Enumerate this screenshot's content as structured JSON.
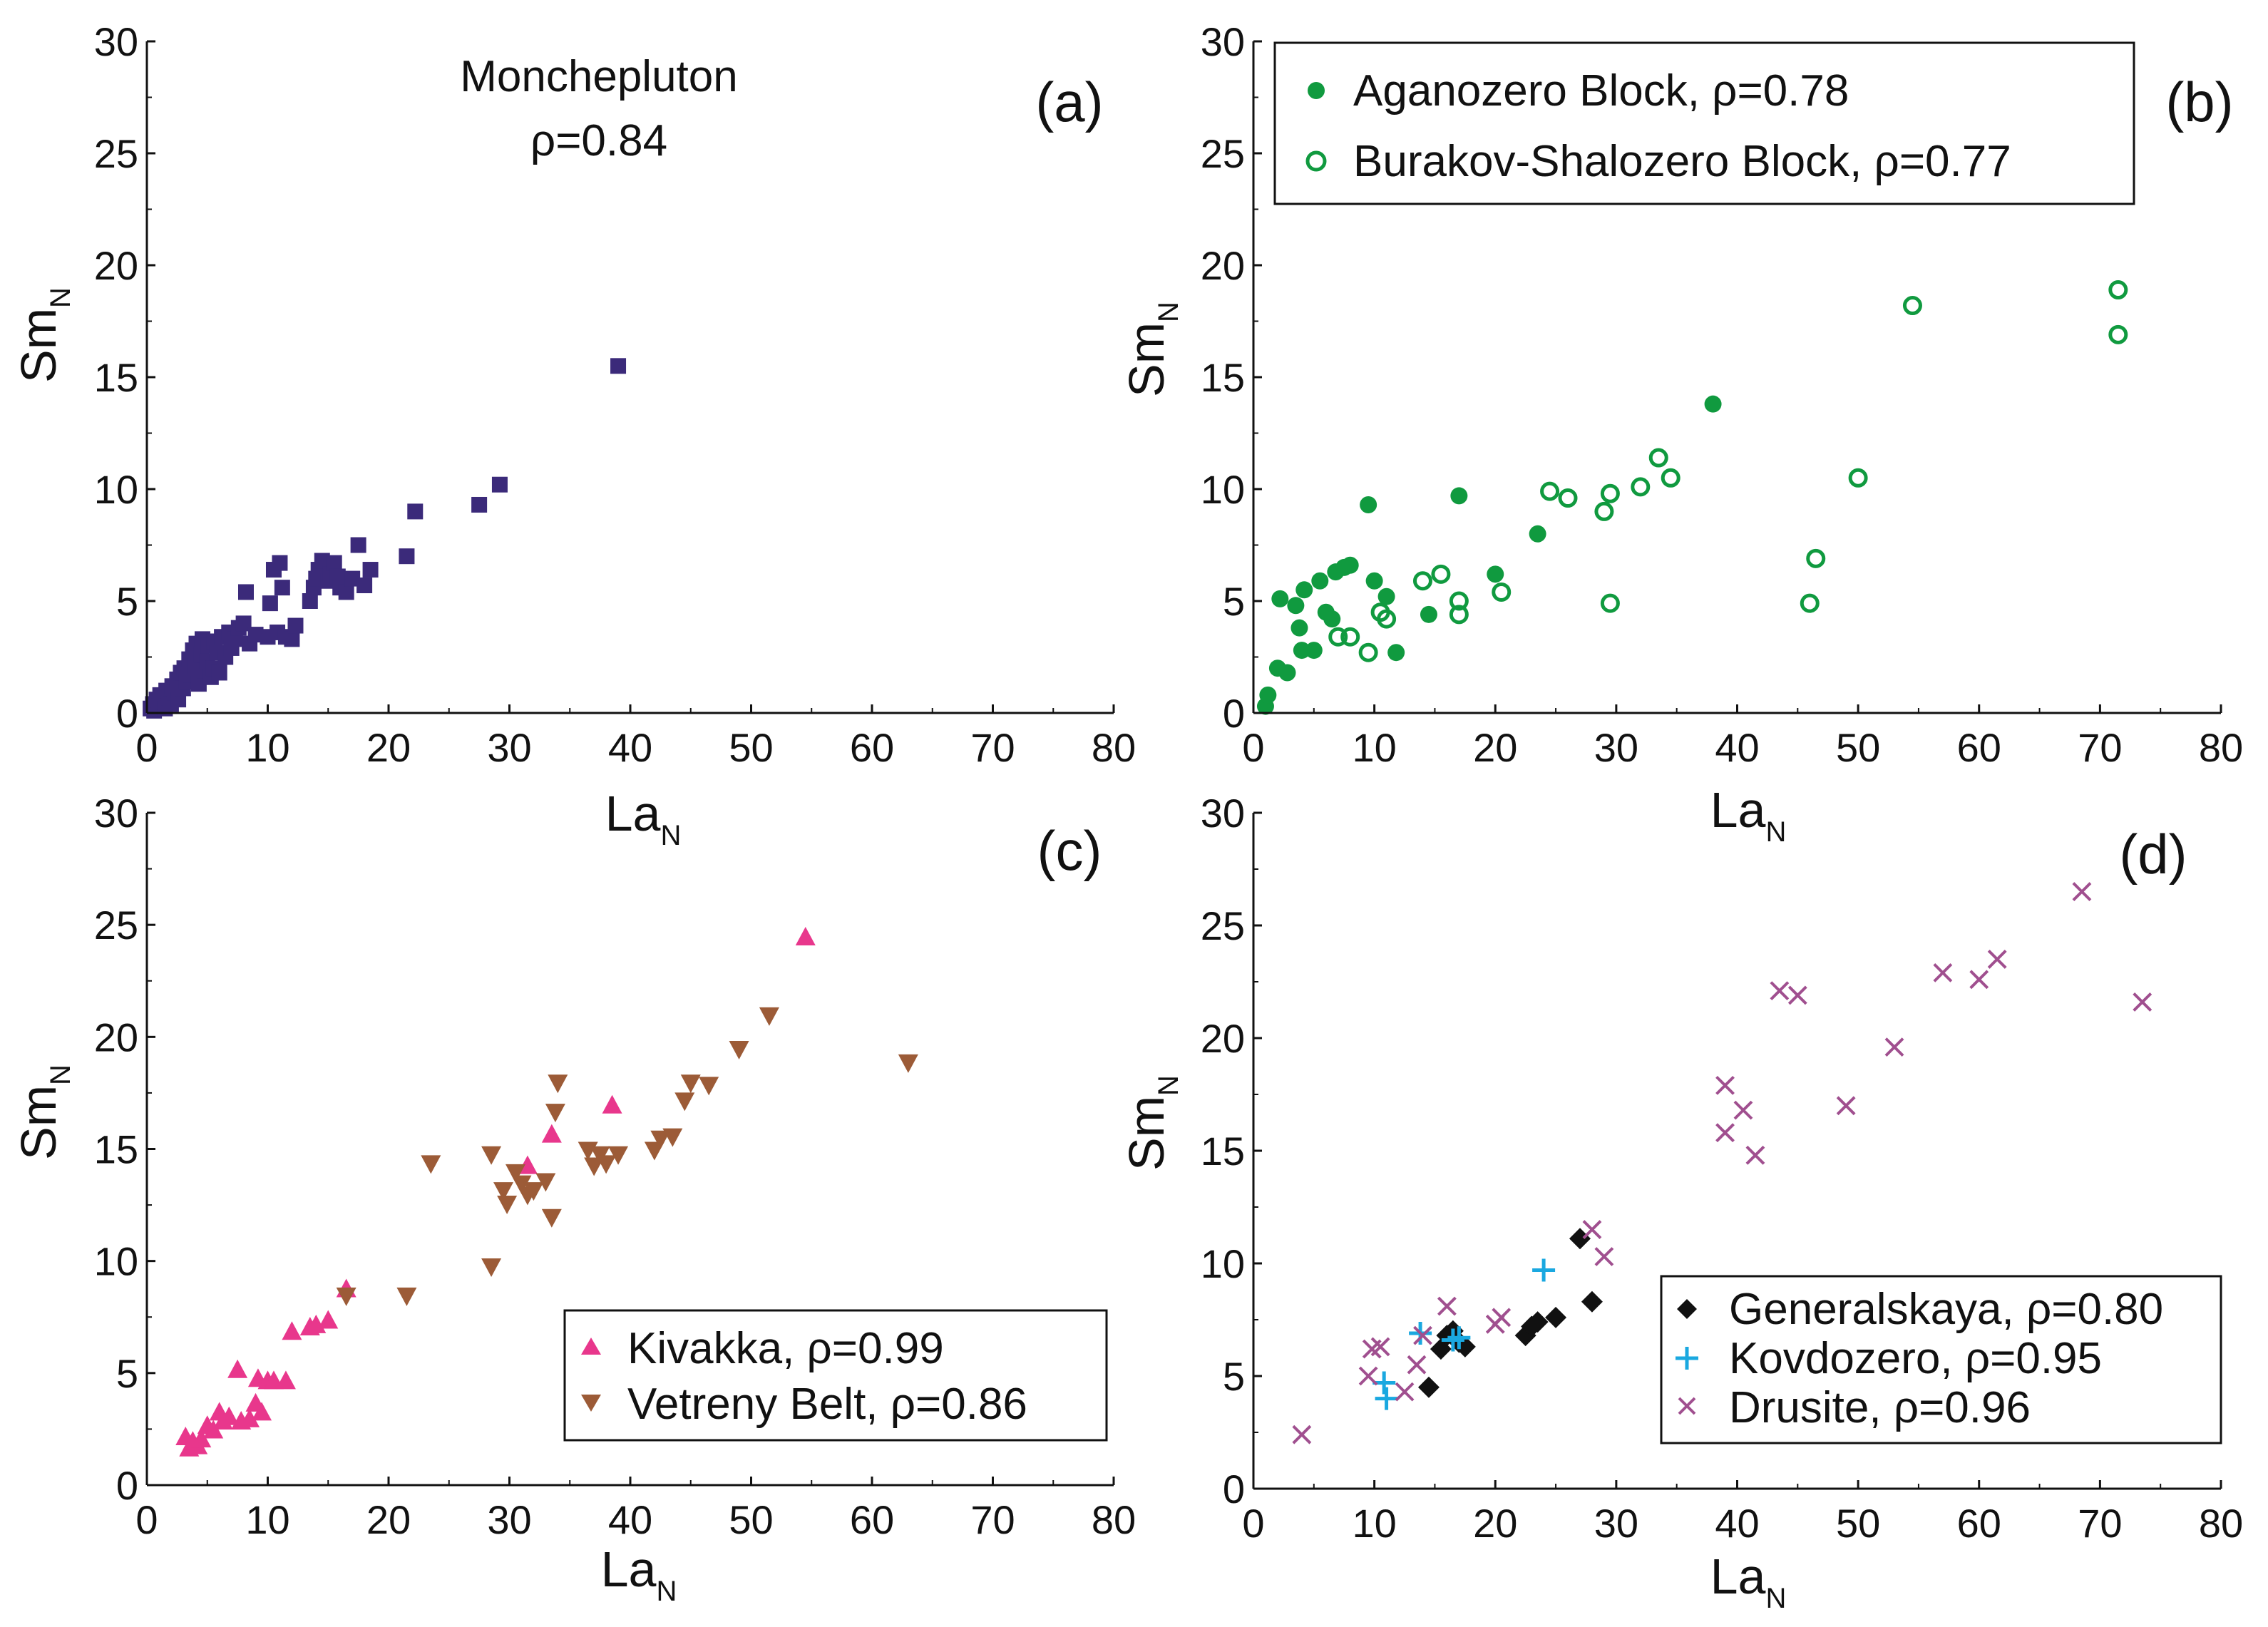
{
  "chart_data": [
    {
      "type": "scatter",
      "panel_label": "(a)",
      "title": "",
      "annotation": [
        "Monchepluton",
        "ρ=0.84"
      ],
      "xlabel": "La",
      "xlabel_sub": "N",
      "ylabel": "Sm",
      "ylabel_sub": "N",
      "xlim": [
        0,
        80
      ],
      "ylim": [
        0,
        30
      ],
      "xticks": [
        "0",
        "10",
        "20",
        "30",
        "40",
        "50",
        "60",
        "70",
        "80"
      ],
      "yticks": [
        "0",
        "5",
        "10",
        "15",
        "20",
        "25",
        "30"
      ],
      "legend": null,
      "series": [
        {
          "name": "Monchepluton",
          "marker": "square",
          "color": "#3b2a7a",
          "points": [
            [
              0.3,
              0.2
            ],
            [
              0.5,
              0.4
            ],
            [
              0.6,
              0.1
            ],
            [
              0.8,
              0.6
            ],
            [
              1.0,
              0.3
            ],
            [
              1.1,
              0.8
            ],
            [
              1.3,
              0.5
            ],
            [
              1.5,
              0.2
            ],
            [
              1.6,
              1.0
            ],
            [
              1.8,
              0.7
            ],
            [
              2.0,
              0.4
            ],
            [
              2.1,
              1.2
            ],
            [
              2.3,
              0.9
            ],
            [
              2.5,
              1.5
            ],
            [
              2.6,
              0.6
            ],
            [
              2.8,
              1.8
            ],
            [
              3.0,
              1.1
            ],
            [
              3.1,
              2.0
            ],
            [
              3.3,
              1.4
            ],
            [
              3.5,
              2.4
            ],
            [
              3.6,
              1.7
            ],
            [
              3.8,
              2.8
            ],
            [
              4.0,
              2.1
            ],
            [
              4.1,
              3.1
            ],
            [
              4.3,
              1.3
            ],
            [
              4.5,
              2.6
            ],
            [
              4.6,
              3.3
            ],
            [
              4.8,
              1.9
            ],
            [
              5.0,
              2.3
            ],
            [
              5.1,
              3.0
            ],
            [
              5.3,
              1.6
            ],
            [
              5.5,
              2.0
            ],
            [
              5.6,
              3.2
            ],
            [
              5.8,
              2.7
            ],
            [
              6.0,
              1.8
            ],
            [
              6.2,
              3.4
            ],
            [
              6.5,
              2.5
            ],
            [
              6.8,
              3.6
            ],
            [
              7.0,
              2.9
            ],
            [
              7.3,
              3.3
            ],
            [
              7.6,
              3.8
            ],
            [
              8.0,
              4.0
            ],
            [
              8.2,
              5.4
            ],
            [
              8.5,
              3.1
            ],
            [
              9.0,
              3.5
            ],
            [
              10.0,
              3.4
            ],
            [
              10.2,
              4.9
            ],
            [
              10.5,
              6.4
            ],
            [
              10.8,
              3.6
            ],
            [
              11.0,
              6.7
            ],
            [
              11.2,
              5.6
            ],
            [
              11.5,
              3.4
            ],
            [
              12.0,
              3.3
            ],
            [
              12.3,
              3.9
            ],
            [
              13.5,
              5.0
            ],
            [
              13.8,
              5.6
            ],
            [
              14.0,
              6.0
            ],
            [
              14.2,
              6.4
            ],
            [
              14.5,
              6.8
            ],
            [
              15.0,
              5.9
            ],
            [
              15.2,
              6.2
            ],
            [
              15.5,
              6.7
            ],
            [
              15.8,
              6.1
            ],
            [
              16.0,
              5.6
            ],
            [
              16.5,
              5.4
            ],
            [
              17.0,
              6.0
            ],
            [
              17.5,
              7.5
            ],
            [
              18.0,
              5.7
            ],
            [
              18.5,
              6.4
            ],
            [
              21.5,
              7.0
            ],
            [
              22.2,
              9.0
            ],
            [
              27.5,
              9.3
            ],
            [
              29.2,
              10.2
            ],
            [
              39.0,
              15.5
            ]
          ]
        }
      ]
    },
    {
      "type": "scatter",
      "panel_label": "(b)",
      "title": "",
      "annotation": [],
      "xlabel": "La",
      "xlabel_sub": "N",
      "ylabel": "Sm",
      "ylabel_sub": "N",
      "xlim": [
        0,
        80
      ],
      "ylim": [
        0,
        30
      ],
      "xticks": [
        "0",
        "10",
        "20",
        "30",
        "40",
        "50",
        "60",
        "70",
        "80"
      ],
      "yticks": [
        "0",
        "5",
        "10",
        "15",
        "20",
        "25",
        "30"
      ],
      "legend": {
        "position": "top-left",
        "entries": [
          "Aganozero Block, ρ=0.78",
          "Burakov-Shalozero Block, ρ=0.77"
        ]
      },
      "series": [
        {
          "name": "Aganozero Block, ρ=0.78",
          "marker": "filled-circle",
          "color": "#109a3f",
          "points": [
            [
              1.0,
              0.3
            ],
            [
              1.2,
              0.8
            ],
            [
              2.0,
              2.0
            ],
            [
              2.2,
              5.1
            ],
            [
              2.8,
              1.8
            ],
            [
              3.5,
              4.8
            ],
            [
              3.8,
              3.8
            ],
            [
              4.0,
              2.8
            ],
            [
              4.2,
              5.5
            ],
            [
              5.0,
              2.8
            ],
            [
              5.5,
              5.9
            ],
            [
              6.0,
              4.5
            ],
            [
              6.5,
              4.2
            ],
            [
              6.8,
              6.3
            ],
            [
              7.5,
              6.5
            ],
            [
              8.0,
              6.6
            ],
            [
              9.5,
              9.3
            ],
            [
              10.0,
              5.9
            ],
            [
              11.0,
              5.2
            ],
            [
              11.8,
              2.7
            ],
            [
              14.5,
              4.4
            ],
            [
              17.0,
              9.7
            ],
            [
              20.0,
              6.2
            ],
            [
              23.5,
              8.0
            ],
            [
              38.0,
              13.8
            ]
          ]
        },
        {
          "name": "Burakov-Shalozero Block, ρ=0.77",
          "marker": "open-circle",
          "color": "#109a3f",
          "points": [
            [
              7.0,
              3.4
            ],
            [
              8.0,
              3.4
            ],
            [
              9.5,
              2.7
            ],
            [
              10.5,
              4.5
            ],
            [
              11.0,
              4.2
            ],
            [
              14.0,
              5.9
            ],
            [
              15.5,
              6.2
            ],
            [
              17.0,
              4.4
            ],
            [
              17.0,
              5.0
            ],
            [
              20.5,
              5.4
            ],
            [
              24.5,
              9.9
            ],
            [
              26.0,
              9.6
            ],
            [
              29.0,
              9.0
            ],
            [
              29.5,
              9.8
            ],
            [
              29.5,
              4.9
            ],
            [
              32.0,
              10.1
            ],
            [
              33.5,
              11.4
            ],
            [
              34.5,
              10.5
            ],
            [
              46.0,
              4.9
            ],
            [
              46.5,
              6.9
            ],
            [
              50.0,
              10.5
            ],
            [
              54.5,
              18.2
            ],
            [
              71.5,
              18.9
            ],
            [
              71.5,
              16.9
            ]
          ]
        }
      ]
    },
    {
      "type": "scatter",
      "panel_label": "(c)",
      "title": "",
      "annotation": [],
      "xlabel": "La",
      "xlabel_sub": "N",
      "ylabel": "Sm",
      "ylabel_sub": "N",
      "xlim": [
        0,
        80
      ],
      "ylim": [
        0,
        30
      ],
      "xticks": [
        "0",
        "10",
        "20",
        "30",
        "40",
        "50",
        "60",
        "70",
        "80"
      ],
      "yticks": [
        "0",
        "5",
        "10",
        "15",
        "20",
        "25",
        "30"
      ],
      "legend": {
        "position": "bottom-right",
        "entries": [
          "Kivakka, ρ=0.99",
          "Vetreny Belt, ρ=0.86"
        ]
      },
      "series": [
        {
          "name": "Kivakka, ρ=0.99",
          "marker": "triangle-up",
          "color": "#e8378c",
          "points": [
            [
              3.2,
              2.1
            ],
            [
              3.5,
              1.6
            ],
            [
              3.8,
              1.9
            ],
            [
              4.2,
              1.7
            ],
            [
              4.5,
              2.0
            ],
            [
              5.0,
              2.6
            ],
            [
              5.5,
              2.4
            ],
            [
              6.0,
              3.2
            ],
            [
              6.3,
              2.8
            ],
            [
              6.8,
              3.0
            ],
            [
              7.5,
              5.1
            ],
            [
              7.8,
              2.8
            ],
            [
              8.5,
              2.9
            ],
            [
              9.0,
              3.6
            ],
            [
              9.2,
              4.7
            ],
            [
              9.5,
              3.2
            ],
            [
              10.0,
              4.6
            ],
            [
              10.5,
              4.6
            ],
            [
              11.5,
              4.6
            ],
            [
              12.0,
              6.8
            ],
            [
              13.5,
              7.0
            ],
            [
              14.0,
              7.1
            ],
            [
              15.0,
              7.3
            ],
            [
              16.5,
              8.7
            ],
            [
              31.5,
              14.2
            ],
            [
              33.5,
              15.6
            ],
            [
              38.5,
              16.9
            ],
            [
              54.5,
              24.4
            ]
          ]
        },
        {
          "name": "Vetreny Belt, ρ=0.86",
          "marker": "triangle-down",
          "color": "#9c5b37",
          "points": [
            [
              16.5,
              8.5
            ],
            [
              21.5,
              8.5
            ],
            [
              23.5,
              14.4
            ],
            [
              28.5,
              9.8
            ],
            [
              28.5,
              14.8
            ],
            [
              29.5,
              13.2
            ],
            [
              29.8,
              12.6
            ],
            [
              30.5,
              14.0
            ],
            [
              31.0,
              13.5
            ],
            [
              31.5,
              13.0
            ],
            [
              32.0,
              13.2
            ],
            [
              33.0,
              13.6
            ],
            [
              33.5,
              12.0
            ],
            [
              33.8,
              16.7
            ],
            [
              34.0,
              18.0
            ],
            [
              36.5,
              15.0
            ],
            [
              37.0,
              14.3
            ],
            [
              37.5,
              14.8
            ],
            [
              38.0,
              14.4
            ],
            [
              39.0,
              14.8
            ],
            [
              42.0,
              15.0
            ],
            [
              42.5,
              15.5
            ],
            [
              43.5,
              15.6
            ],
            [
              44.5,
              17.2
            ],
            [
              45.0,
              18.0
            ],
            [
              46.5,
              17.9
            ],
            [
              49.0,
              19.5
            ],
            [
              51.5,
              21.0
            ],
            [
              63.0,
              18.9
            ]
          ]
        }
      ]
    },
    {
      "type": "scatter",
      "panel_label": "(d)",
      "title": "",
      "annotation": [],
      "xlabel": "La",
      "xlabel_sub": "N",
      "ylabel": "Sm",
      "ylabel_sub": "N",
      "xlim": [
        0,
        80
      ],
      "ylim": [
        0,
        30
      ],
      "xticks": [
        "0",
        "10",
        "20",
        "30",
        "40",
        "50",
        "60",
        "70",
        "80"
      ],
      "yticks": [
        "0",
        "5",
        "10",
        "15",
        "20",
        "25",
        "30"
      ],
      "legend": {
        "position": "bottom-right",
        "entries": [
          "Generalskaya, ρ=0.80",
          "Kovdozero, ρ=0.95",
          "Drusite, ρ=0.96"
        ]
      },
      "series": [
        {
          "name": "Generalskaya, ρ=0.80",
          "marker": "diamond",
          "color": "#111111",
          "points": [
            [
              14.5,
              4.5
            ],
            [
              15.5,
              6.2
            ],
            [
              16.0,
              6.8
            ],
            [
              16.5,
              7.0
            ],
            [
              17.0,
              6.5
            ],
            [
              17.5,
              6.3
            ],
            [
              22.5,
              6.8
            ],
            [
              23.0,
              7.2
            ],
            [
              23.5,
              7.4
            ],
            [
              25.0,
              7.6
            ],
            [
              27.0,
              11.1
            ],
            [
              28.0,
              8.3
            ]
          ]
        },
        {
          "name": "Kovdozero, ρ=0.95",
          "marker": "plus",
          "color": "#1aa8e0",
          "points": [
            [
              10.8,
              4.7
            ],
            [
              11.0,
              4.0
            ],
            [
              13.8,
              6.9
            ],
            [
              16.5,
              6.6
            ],
            [
              17.0,
              6.7
            ],
            [
              24.0,
              9.7
            ]
          ]
        },
        {
          "name": "Drusite, ρ=0.96",
          "marker": "cross",
          "color": "#a04f8f",
          "points": [
            [
              4.0,
              2.4
            ],
            [
              9.5,
              5.0
            ],
            [
              9.8,
              6.2
            ],
            [
              10.5,
              6.3
            ],
            [
              12.5,
              4.3
            ],
            [
              13.5,
              5.5
            ],
            [
              14.0,
              6.8
            ],
            [
              16.0,
              8.1
            ],
            [
              20.0,
              7.3
            ],
            [
              20.5,
              7.6
            ],
            [
              28.0,
              11.5
            ],
            [
              29.0,
              10.3
            ],
            [
              39.0,
              17.9
            ],
            [
              39.0,
              15.8
            ],
            [
              40.5,
              16.8
            ],
            [
              41.5,
              14.8
            ],
            [
              43.5,
              22.1
            ],
            [
              45.0,
              21.9
            ],
            [
              49.0,
              17.0
            ],
            [
              53.0,
              19.6
            ],
            [
              57.0,
              22.9
            ],
            [
              60.0,
              22.6
            ],
            [
              61.5,
              23.5
            ],
            [
              68.5,
              26.5
            ],
            [
              73.5,
              21.6
            ]
          ]
        }
      ]
    }
  ]
}
